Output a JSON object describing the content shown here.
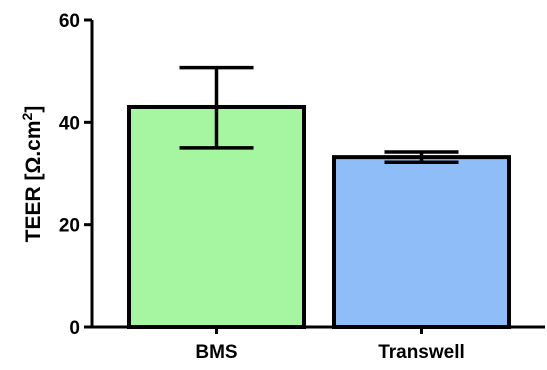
{
  "chart_data": {
    "type": "bar",
    "categories": [
      "BMS",
      "Transwell"
    ],
    "values": [
      43,
      33.2
    ],
    "errors": [
      {
        "low": 35,
        "high": 50.7
      },
      {
        "low": 32.2,
        "high": 34.2
      }
    ],
    "colors": [
      "#a6f5a1",
      "#8fbdf7"
    ],
    "ylabel_main": "TEER [Ω.cm",
    "ylabel_sup": "2",
    "ylabel_end": "]",
    "ylim": [
      0,
      60
    ],
    "yticks": [
      0,
      20,
      40,
      60
    ],
    "grid": false,
    "legend": "none"
  }
}
